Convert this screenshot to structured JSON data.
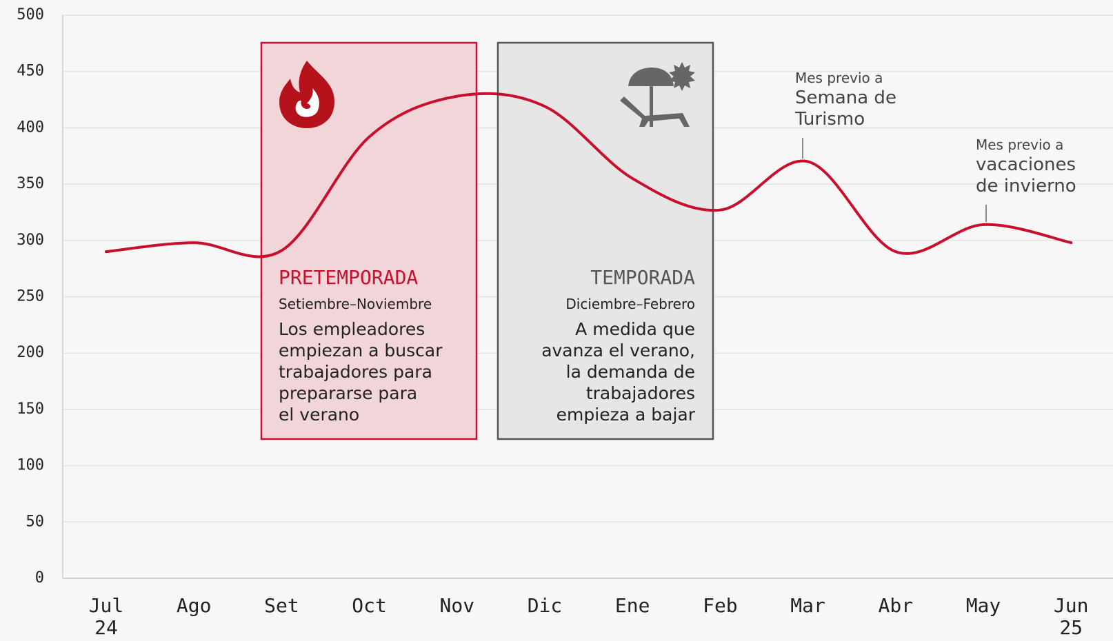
{
  "chart_data": {
    "type": "line",
    "categories": [
      "Jul 24",
      "Ago",
      "Set",
      "Oct",
      "Nov",
      "Dic",
      "Ene",
      "Feb",
      "Mar",
      "Abr",
      "May",
      "Jun 25"
    ],
    "values": [
      290,
      298,
      291,
      392,
      428,
      419,
      355,
      327,
      370,
      290,
      314,
      298
    ],
    "color": "#c8102e",
    "ylim": [
      0,
      500
    ],
    "yticks": [
      0,
      50,
      100,
      150,
      200,
      250,
      300,
      350,
      400,
      450,
      500
    ],
    "grid": true,
    "periods": [
      {
        "title": "PRETEMPORADA",
        "range": "Setiembre–Noviembre",
        "text": "Los empleadores\nempiezan a buscar\ntrabajadores para\nprepararse para\nel verano",
        "color": "#c8102e"
      },
      {
        "title": "TEMPORADA",
        "range": "Diciembre–Febrero",
        "text": "A medida que\navanza el verano,\nla demanda de\ntrabajadores\nempieza a bajar",
        "color": "#555555"
      }
    ],
    "annotations": [
      {
        "lead": "Mes previo a",
        "text": "Semana de\nTurismo"
      },
      {
        "lead": "Mes previo a",
        "text": "vacaciones\nde invierno"
      }
    ]
  }
}
